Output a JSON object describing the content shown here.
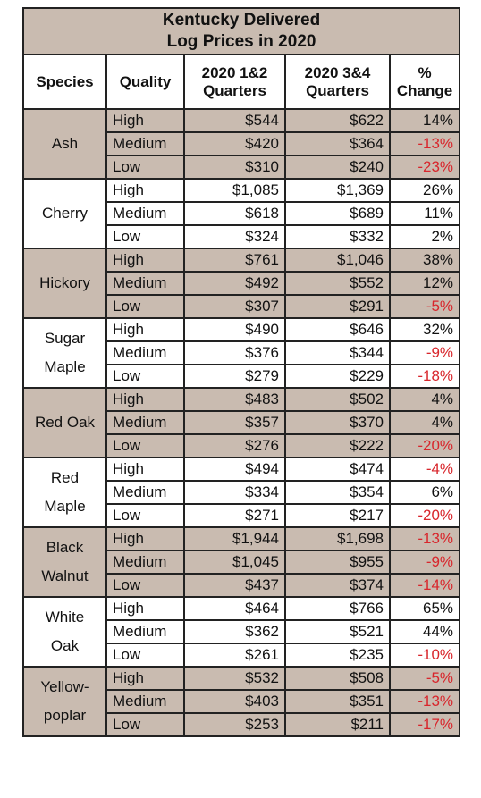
{
  "title": [
    "Kentucky Delivered",
    "Log Prices in 2020"
  ],
  "header": [
    [
      "Species"
    ],
    [
      "Quality"
    ],
    [
      "2020 1&2",
      "Quarters"
    ],
    [
      "2020 3&4",
      "Quarters"
    ],
    [
      "%",
      "Change"
    ]
  ],
  "groups": [
    {
      "species": [
        "Ash"
      ],
      "rows": [
        [
          "High",
          "$544",
          "$622",
          "14%"
        ],
        [
          "Medium",
          "$420",
          "$364",
          "-13%"
        ],
        [
          "Low",
          "$310",
          "$240",
          "-23%"
        ]
      ]
    },
    {
      "species": [
        "Cherry"
      ],
      "rows": [
        [
          "High",
          "$1,085",
          "$1,369",
          "26%"
        ],
        [
          "Medium",
          "$618",
          "$689",
          "11%"
        ],
        [
          "Low",
          "$324",
          "$332",
          "2%"
        ]
      ]
    },
    {
      "species": [
        "Hickory"
      ],
      "rows": [
        [
          "High",
          "$761",
          "$1,046",
          "38%"
        ],
        [
          "Medium",
          "$492",
          "$552",
          "12%"
        ],
        [
          "Low",
          "$307",
          "$291",
          "-5%"
        ]
      ]
    },
    {
      "species": [
        "Sugar",
        "Maple"
      ],
      "rows": [
        [
          "High",
          "$490",
          "$646",
          "32%"
        ],
        [
          "Medium",
          "$376",
          "$344",
          "-9%"
        ],
        [
          "Low",
          "$279",
          "$229",
          "-18%"
        ]
      ]
    },
    {
      "species": [
        "Red Oak"
      ],
      "rows": [
        [
          "High",
          "$483",
          "$502",
          "4%"
        ],
        [
          "Medium",
          "$357",
          "$370",
          "4%"
        ],
        [
          "Low",
          "$276",
          "$222",
          "-20%"
        ]
      ]
    },
    {
      "species": [
        "Red",
        "Maple"
      ],
      "rows": [
        [
          "High",
          "$494",
          "$474",
          "-4%"
        ],
        [
          "Medium",
          "$334",
          "$354",
          "6%"
        ],
        [
          "Low",
          "$271",
          "$217",
          "-20%"
        ]
      ]
    },
    {
      "species": [
        "Black",
        "Walnut"
      ],
      "rows": [
        [
          "High",
          "$1,944",
          "$1,698",
          "-13%"
        ],
        [
          "Medium",
          "$1,045",
          "$955",
          "-9%"
        ],
        [
          "Low",
          "$437",
          "$374",
          "-14%"
        ]
      ]
    },
    {
      "species": [
        "White",
        "Oak"
      ],
      "rows": [
        [
          "High",
          "$464",
          "$766",
          "65%"
        ],
        [
          "Medium",
          "$362",
          "$521",
          "44%"
        ],
        [
          "Low",
          "$261",
          "$235",
          "-10%"
        ]
      ]
    },
    {
      "species": [
        "Yellow-",
        "poplar"
      ],
      "rows": [
        [
          "High",
          "$532",
          "$508",
          "-5%"
        ],
        [
          "Medium",
          "$403",
          "$351",
          "-13%"
        ],
        [
          "Low",
          "$253",
          "$211",
          "-17%"
        ]
      ]
    }
  ]
}
